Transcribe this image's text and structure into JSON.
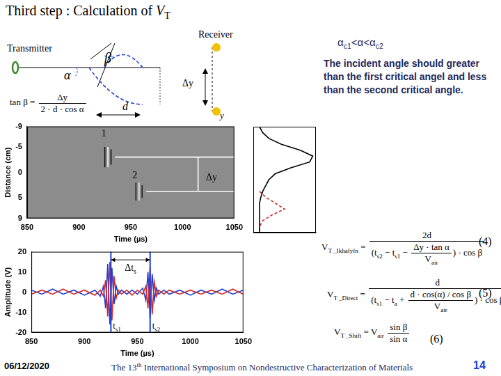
{
  "header": {
    "title": [
      "Third step : Calculation of ",
      {
        "i": "V"
      },
      {
        "sub": "T"
      }
    ]
  },
  "diagram": {
    "transmitter": "Transmitter",
    "receiver": "Receiver",
    "alpha": "α",
    "beta": "β",
    "delta_y": "Δy",
    "d": "d",
    "y": "y",
    "formula": [
      "tan β = ",
      {
        "frac": {
          "num": [
            "Δy"
          ],
          "den": [
            "2 · d · cos α"
          ]
        }
      }
    ]
  },
  "notes": {
    "condition": [
      "α",
      {
        "sub": "c1"
      },
      "<α<α",
      {
        "sub": "c2"
      }
    ],
    "text": "The incident angle should greater than the first critical angel and less than the second critical angle."
  },
  "equations": [
    {
      "expr": [
        "V",
        {
          "sub": "T _Ikhafyfn"
        },
        " = ",
        {
          "frac": {
            "num": [
              "2d"
            ],
            "den": [
              "(t",
              {
                "sub": "s2"
              },
              " − t",
              {
                "sub": "s1"
              },
              " − ",
              {
                "frac": {
                  "num": [
                    "Δy · tan α"
                  ],
                  "den": [
                    "V",
                    {
                      "sub": "air"
                    }
                  ]
                }
              },
              ") · cos β"
            ]
          }
        }
      ],
      "tag": "(4)"
    },
    {
      "expr": [
        "V",
        {
          "sub": "T _Direct"
        },
        " = ",
        {
          "frac": {
            "num": [
              "d"
            ],
            "den": [
              "(t",
              {
                "sub": "s1"
              },
              " − t",
              {
                "sub": "a"
              },
              " + ",
              {
                "frac": {
                  "num": [
                    "d · cos(α) / cos β"
                  ],
                  "den": [
                    "V",
                    {
                      "sub": "air"
                    }
                  ]
                }
              },
              ") · cos β"
            ]
          }
        }
      ],
      "tag": "(5)"
    },
    {
      "expr": [
        "V",
        {
          "sub": "T _Shift"
        },
        " = V",
        {
          "sub": "air"
        },
        " ",
        {
          "frac": {
            "num": [
              "sin β"
            ],
            "den": [
              "sin α"
            ]
          }
        }
      ],
      "tag": "(6)"
    }
  ],
  "footer": {
    "date": "06/12/2020",
    "event": [
      "The 13",
      {
        "sup": "th"
      },
      " International Symposium on Nondestructive Characterization of Materials"
    ],
    "page": "14"
  },
  "chart_data": [
    {
      "type": "line",
      "x_label": "Time (µs)",
      "y_label": "Distance (cm)",
      "xlim": [
        850,
        1050
      ],
      "xticks": [
        850,
        900,
        950,
        1000,
        1050
      ],
      "ylim": [
        -9,
        9
      ],
      "yticks": [
        -9,
        -5,
        0,
        5,
        9
      ],
      "grid": false,
      "series": [
        {
          "color": "#111111",
          "x": [
            925,
            925
          ],
          "values": [
            -5,
            -1
          ]
        },
        {
          "color": "#ffffff",
          "x": [
            928,
            928
          ],
          "values": [
            -5,
            -1
          ]
        },
        {
          "color": "#111111",
          "x": [
            931,
            931
          ],
          "values": [
            -4.5,
            -1.5
          ]
        },
        {
          "color": "#222222",
          "x": [
            955,
            955
          ],
          "values": [
            2,
            5.5
          ]
        },
        {
          "color": "#eeeeee",
          "x": [
            958,
            958
          ],
          "values": [
            2,
            5.5
          ]
        },
        {
          "color": "#222222",
          "x": [
            961,
            961
          ],
          "values": [
            2.5,
            5
          ]
        },
        {
          "color": "#ffffff",
          "x": [
            935,
            1050
          ],
          "values": [
            -3,
            -3
          ]
        },
        {
          "color": "#ffffff",
          "x": [
            965,
            1050
          ],
          "values": [
            3.7,
            3.7
          ]
        },
        {
          "color": "#ffffff",
          "x": [
            1015,
            1015
          ],
          "values": [
            -3,
            3.7
          ]
        }
      ],
      "annotations": [
        {
          "text": "1",
          "x": 924,
          "y": -7.5
        },
        {
          "text": "2",
          "x": 954,
          "y": 0.6
        },
        {
          "text": "Δy",
          "x": 1028,
          "y": 1
        }
      ]
    },
    {
      "type": "line",
      "xlim": [
        0,
        1
      ],
      "ylim": [
        -9,
        9
      ],
      "tick_labels": false,
      "grid": false,
      "y": [
        -9,
        -8,
        -7,
        -6,
        -5,
        -4,
        -3,
        -2,
        -1,
        0,
        1,
        2,
        3,
        4,
        5,
        6,
        7,
        8,
        9
      ],
      "series": [
        {
          "color": "#000000",
          "values": [
            0.1,
            0.15,
            0.25,
            0.45,
            0.75,
            0.95,
            0.9,
            0.6,
            0.35,
            0.25,
            0.2,
            0.15,
            0.12,
            0.1,
            0.1,
            0.1,
            0.1,
            0.1,
            0.1
          ]
        },
        {
          "color": "#d62728",
          "line_style": "dashed",
          "values": [
            null,
            null,
            null,
            null,
            null,
            null,
            null,
            null,
            null,
            null,
            null,
            0.1,
            0.2,
            0.35,
            0.5,
            0.3,
            0.15,
            0.1,
            0.1
          ]
        }
      ]
    },
    {
      "type": "line",
      "x_label": "Time (µs)",
      "y_label": "Amplitude (V)",
      "xlim": [
        850,
        1050
      ],
      "xticks": [
        850,
        900,
        950,
        1000,
        1050
      ],
      "ylim": [
        -20,
        20
      ],
      "yticks": [
        -20,
        -10,
        0,
        10,
        20
      ],
      "grid": false,
      "x": [
        850,
        860,
        870,
        880,
        890,
        900,
        910,
        915,
        918,
        920,
        922,
        924,
        926,
        928,
        930,
        932,
        935,
        940,
        945,
        950,
        955,
        958,
        960,
        962,
        964,
        966,
        968,
        970,
        975,
        980,
        990,
        1000,
        1010,
        1020,
        1030,
        1040,
        1050
      ],
      "series": [
        {
          "color": "#d62728",
          "values": [
            -1,
            1,
            -1,
            1.5,
            -1,
            1,
            -1.5,
            1,
            -2,
            6,
            -12,
            15,
            -14,
            8,
            -3,
            1,
            -1,
            1,
            -1.5,
            1,
            -1,
            3,
            -8,
            12,
            -11,
            5,
            -2,
            1,
            -1,
            1,
            -1,
            1,
            -1,
            1,
            -1,
            1.5,
            -1
          ]
        },
        {
          "color": "#1f3fd6",
          "values": [
            1,
            -1,
            1.5,
            -1,
            1,
            -1.5,
            1,
            -2,
            3,
            -8,
            14,
            -16,
            12,
            -6,
            3,
            -1,
            1,
            -1,
            1,
            -1,
            2,
            -4,
            10,
            -13,
            9,
            -4,
            2,
            -1,
            1,
            -1,
            1,
            -1.5,
            1,
            -1,
            1.5,
            -1,
            1
          ]
        }
      ],
      "markers": [
        {
          "x": 925,
          "label": [
            "t",
            {
              "sub": "s1"
            }
          ]
        },
        {
          "x": 962,
          "label": [
            "t",
            {
              "sub": "s2"
            }
          ]
        }
      ],
      "span_label": [
        "Δt",
        {
          "sub": "s"
        }
      ],
      "span_y": 16
    }
  ]
}
